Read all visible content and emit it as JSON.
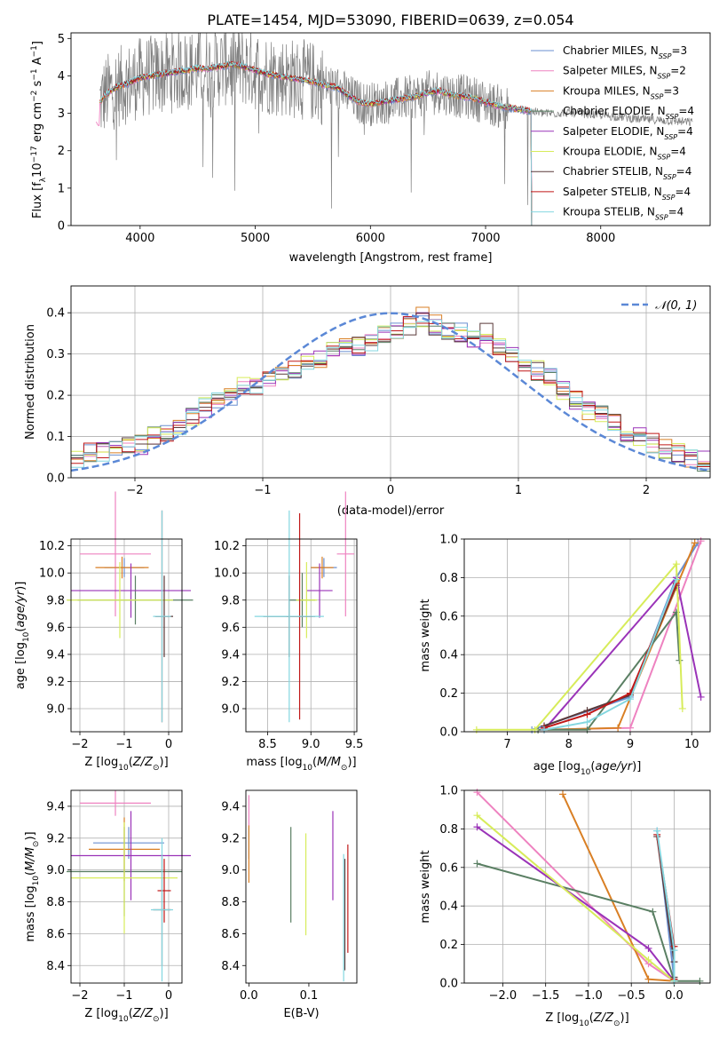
{
  "figure": {
    "title": "PLATE=1454, MJD=53090, FIBERID=0639, z=0.054"
  },
  "series_colors": [
    "#6a8fd0",
    "#ee82c0",
    "#d97f24",
    "#5a7f63",
    "#9a33b8",
    "#d7ec5a",
    "#5a3a3a",
    "#c01818",
    "#84d7e0"
  ],
  "chart_data": [
    {
      "type": "line",
      "id": "spectrum",
      "title": "PLATE=1454, MJD=53090, FIBERID=0639, z=0.054",
      "xlabel": "wavelength [Angstrom, rest frame]",
      "ylabel": "Flux [f$_\\lambda$10$^{-17}$ erg cm$^{-2}$ s$^{-1}$ A$^{-1}$]",
      "ylabel_parts": {
        "a": "Flux [f",
        "sub1": "λ",
        "b": "10",
        "sup1": "−17",
        "c": " erg cm",
        "sup2": "−2",
        "d": " s",
        "sup3": "−1",
        "e": " A",
        "sup4": "−1",
        "f": "]"
      },
      "xlim": [
        3400,
        8950
      ],
      "ylim": [
        0,
        5.15
      ],
      "xticks": [
        4000,
        5000,
        6000,
        7000,
        8000
      ],
      "yticks": [
        0,
        1,
        2,
        3,
        4,
        5
      ],
      "grid": false,
      "legend_placement": "top-right",
      "data_color": "#808080",
      "data_continuum": {
        "x": [
          3650,
          3700,
          3800,
          3900,
          4000,
          4100,
          4200,
          4300,
          4400,
          4500,
          4600,
          4700,
          4800,
          4900,
          5000,
          5100,
          5200,
          5300,
          5400,
          5500,
          5600,
          5700,
          5800,
          5900,
          6000,
          6100,
          6200,
          6300,
          6400,
          6500,
          6600,
          6700,
          6800,
          6900,
          7000,
          7100,
          7200,
          7300,
          7400,
          7500,
          7600,
          7700,
          7800,
          7900,
          8000,
          8100,
          8200,
          8300,
          8400,
          8500,
          8600,
          8700,
          8800
        ],
        "y": [
          3.3,
          3.5,
          3.7,
          3.8,
          3.95,
          4.0,
          4.05,
          4.1,
          4.15,
          4.2,
          4.2,
          4.25,
          4.3,
          4.25,
          4.15,
          4.05,
          4.0,
          3.95,
          3.9,
          3.85,
          3.75,
          3.7,
          3.5,
          3.3,
          3.25,
          3.3,
          3.35,
          3.4,
          3.45,
          3.55,
          3.6,
          3.5,
          3.45,
          3.4,
          3.3,
          3.2,
          3.15,
          3.1,
          3.05,
          3.0,
          3.0,
          3.02,
          3.0,
          2.98,
          2.95,
          2.92,
          2.9,
          2.85,
          2.83,
          2.82,
          2.8,
          2.78,
          2.76
        ]
      },
      "model_end_x": [
        7400,
        7400,
        7400,
        7400,
        7400,
        7400,
        7400,
        7400,
        7400
      ],
      "model_start_x": [
        3650,
        3620,
        3650,
        3650,
        3700,
        3650,
        3650,
        3650,
        3650
      ],
      "series": [
        {
          "name": "Chabrier MILES, N$_{SSP}$=3",
          "label_main": "Chabrier MILES, N",
          "label_sub": "SSP",
          "label_tail": "=3"
        },
        {
          "name": "Salpeter MILES, N$_{SSP}$=2",
          "label_main": "Salpeter MILES, N",
          "label_sub": "SSP",
          "label_tail": "=2"
        },
        {
          "name": "Kroupa MILES, N$_{SSP}$=3",
          "label_main": "Kroupa MILES, N",
          "label_sub": "SSP",
          "label_tail": "=3"
        },
        {
          "name": "Chabrier ELODIE, N$_{SSP}$=4",
          "label_main": "Chabrier ELODIE, N",
          "label_sub": "SSP",
          "label_tail": "=4"
        },
        {
          "name": "Salpeter ELODIE, N$_{SSP}$=4",
          "label_main": "Salpeter ELODIE, N",
          "label_sub": "SSP",
          "label_tail": "=4"
        },
        {
          "name": "Kroupa ELODIE, N$_{SSP}$=4",
          "label_main": "Kroupa ELODIE, N",
          "label_sub": "SSP",
          "label_tail": "=4"
        },
        {
          "name": "Chabrier STELIB, N$_{SSP}$=4",
          "label_main": "Chabrier STELIB, N",
          "label_sub": "SSP",
          "label_tail": "=4"
        },
        {
          "name": "Salpeter STELIB, N$_{SSP}$=4",
          "label_main": "Salpeter STELIB, N",
          "label_sub": "SSP",
          "label_tail": "=4"
        },
        {
          "name": "Kroupa STELIB, N$_{SSP}$=4",
          "label_main": "Kroupa STELIB, N",
          "label_sub": "SSP",
          "label_tail": "=4"
        }
      ]
    },
    {
      "type": "line",
      "id": "residuals",
      "xlabel": "(data-model)/error",
      "ylabel": "Normed distribution",
      "xlim": [
        -2.5,
        2.5
      ],
      "ylim": [
        0,
        0.465
      ],
      "xticks": [
        -2,
        -1,
        0,
        1,
        2
      ],
      "yticks": [
        0.0,
        0.1,
        0.2,
        0.3,
        0.4
      ],
      "grid": true,
      "legend_placement": "top-right",
      "normal_curve": {
        "name": "$\\mathcal{N}(0,1)$",
        "label": "𝒩(0, 1)",
        "mean": 0,
        "sigma": 1,
        "color": "#5b88d6"
      },
      "bin_edges": [
        -2.5,
        -2.4,
        -2.3,
        -2.2,
        -2.1,
        -2.0,
        -1.9,
        -1.8,
        -1.7,
        -1.6,
        -1.5,
        -1.4,
        -1.3,
        -1.2,
        -1.1,
        -1.0,
        -0.9,
        -0.8,
        -0.7,
        -0.6,
        -0.5,
        -0.4,
        -0.3,
        -0.2,
        -0.1,
        0.0,
        0.1,
        0.2,
        0.3,
        0.4,
        0.5,
        0.6,
        0.7,
        0.8,
        0.9,
        1.0,
        1.1,
        1.2,
        1.3,
        1.4,
        1.5,
        1.6,
        1.7,
        1.8,
        1.9,
        2.0,
        2.1,
        2.2,
        2.3,
        2.4,
        2.5
      ],
      "base_histogram": [
        0.05,
        0.06,
        0.065,
        0.07,
        0.075,
        0.08,
        0.1,
        0.11,
        0.12,
        0.15,
        0.17,
        0.19,
        0.2,
        0.22,
        0.22,
        0.24,
        0.25,
        0.26,
        0.28,
        0.29,
        0.31,
        0.33,
        0.32,
        0.33,
        0.35,
        0.36,
        0.37,
        0.39,
        0.37,
        0.36,
        0.35,
        0.34,
        0.35,
        0.32,
        0.3,
        0.28,
        0.26,
        0.24,
        0.21,
        0.19,
        0.16,
        0.15,
        0.13,
        0.11,
        0.1,
        0.085,
        0.07,
        0.06,
        0.045,
        0.04
      ],
      "histogram_deviation": 0.025
    },
    {
      "type": "scatter",
      "id": "age-vs-Z",
      "xlabel": "Z [log$_{10}$($Z/Z_\\odot$)]",
      "ylabel": "age  [log$_{10}$($age/yr$)]",
      "xlim": [
        -2.2,
        0.3
      ],
      "ylim": [
        8.83,
        10.25
      ],
      "xticks": [
        -2,
        -1,
        0
      ],
      "yticks": [
        9.0,
        9.2,
        9.4,
        9.6,
        9.8,
        10.0,
        10.2
      ],
      "grid": true,
      "errorbars": [
        {
          "x": -1.0,
          "y": 10.04,
          "xerr": 0.45,
          "yerr": 0.07,
          "series": 0
        },
        {
          "x": -1.2,
          "y": 10.14,
          "xerr": 0.8,
          "yerr": 0.46,
          "series": 1
        },
        {
          "x": -1.05,
          "y": 10.04,
          "xerr": 0.6,
          "yerr": 0.08,
          "series": 2
        },
        {
          "x": -0.75,
          "y": 9.8,
          "xerr": 1.3,
          "yerr": 0.18,
          "series": 3
        },
        {
          "x": -0.85,
          "y": 9.87,
          "xerr": 1.35,
          "yerr": 0.2,
          "series": 4
        },
        {
          "x": -1.1,
          "y": 9.8,
          "xerr": 1.2,
          "yerr": 0.28,
          "series": 5
        },
        {
          "x": -0.1,
          "y": 9.68,
          "xerr": 0.2,
          "yerr": 0.3,
          "series": 6
        },
        {
          "x": -0.15,
          "y": 9.68,
          "xerr": 0.15,
          "yerr": 0.78,
          "series": 7
        },
        {
          "x": -0.15,
          "y": 9.68,
          "xerr": 0.2,
          "yerr": 0.78,
          "series": 8
        }
      ]
    },
    {
      "type": "scatter",
      "id": "age-vs-mass",
      "xlabel": "mass [log$_{10}$($M/M_\\odot$)]",
      "ylabel": "",
      "xlim": [
        8.25,
        9.53
      ],
      "ylim": [
        8.83,
        10.25
      ],
      "xticks": [
        8.5,
        9.0,
        9.5
      ],
      "yticks": [
        9.0,
        9.2,
        9.4,
        9.6,
        9.8,
        10.0,
        10.2
      ],
      "grid": true,
      "errorbars": [
        {
          "x": 9.15,
          "y": 10.04,
          "xerr": 0.15,
          "yerr": 0.07,
          "series": 0
        },
        {
          "x": 9.4,
          "y": 10.14,
          "xerr": 0.1,
          "yerr": 0.46,
          "series": 1
        },
        {
          "x": 9.13,
          "y": 10.04,
          "xerr": 0.13,
          "yerr": 0.08,
          "series": 2
        },
        {
          "x": 8.9,
          "y": 9.8,
          "xerr": 0.15,
          "yerr": 0.2,
          "series": 3
        },
        {
          "x": 9.1,
          "y": 9.87,
          "xerr": 0.15,
          "yerr": 0.2,
          "series": 4
        },
        {
          "x": 8.95,
          "y": 9.8,
          "xerr": 0.12,
          "yerr": 0.28,
          "series": 5
        },
        {
          "x": 8.75,
          "y": 9.68,
          "xerr": 0.3,
          "yerr": 0.3,
          "series": 6
        },
        {
          "x": 8.87,
          "y": 9.68,
          "xerr": 0.15,
          "yerr": 0.76,
          "series": 7
        },
        {
          "x": 8.75,
          "y": 9.68,
          "xerr": 0.4,
          "yerr": 0.78,
          "series": 8
        }
      ]
    },
    {
      "type": "line",
      "id": "massweight-vs-age",
      "xlabel": "age  [log$_{10}$($age/yr$)]",
      "ylabel": "mass weight",
      "xlim": [
        6.3,
        10.3
      ],
      "ylim": [
        0.0,
        1.0
      ],
      "xticks": [
        7,
        8,
        9,
        10
      ],
      "yticks": [
        0.0,
        0.2,
        0.4,
        0.6,
        0.8,
        1.0
      ],
      "grid": true,
      "series": [
        {
          "x": [
            7.4,
            9.0,
            9.75,
            10.1
          ],
          "y": [
            0.01,
            0.18,
            0.8,
            0.98
          ],
          "series": 0
        },
        {
          "x": [
            7.5,
            9.0,
            10.15
          ],
          "y": [
            0.01,
            0.02,
            0.99
          ],
          "series": 1
        },
        {
          "x": [
            7.6,
            8.8,
            9.75,
            10.05
          ],
          "y": [
            0.01,
            0.02,
            0.75,
            0.98
          ],
          "series": 2
        },
        {
          "x": [
            7.5,
            8.3,
            9.75,
            9.8
          ],
          "y": [
            0.01,
            0.01,
            0.62,
            0.37
          ],
          "series": 3
        },
        {
          "x": [
            7.6,
            9.75,
            10.15
          ],
          "y": [
            0.01,
            0.8,
            0.18
          ],
          "series": 4
        },
        {
          "x": [
            6.5,
            7.45,
            9.75,
            9.85
          ],
          "y": [
            0.01,
            0.01,
            0.87,
            0.12
          ],
          "series": 5
        },
        {
          "x": [
            7.6,
            8.3,
            9.0,
            9.75
          ],
          "y": [
            0.03,
            0.11,
            0.19,
            0.76
          ],
          "series": 6
        },
        {
          "x": [
            7.6,
            8.3,
            9.0,
            9.75
          ],
          "y": [
            0.02,
            0.09,
            0.2,
            0.77
          ],
          "series": 7
        },
        {
          "x": [
            7.6,
            8.3,
            9.0,
            9.75
          ],
          "y": [
            0.01,
            0.05,
            0.17,
            0.79
          ],
          "series": 8
        }
      ]
    },
    {
      "type": "scatter",
      "id": "mass-vs-Z",
      "xlabel": "Z [log$_{10}$($Z/Z_\\odot$)]",
      "ylabel": "mass [log$_{10}$($M/M_\\odot$)]",
      "xlim": [
        -2.2,
        0.3
      ],
      "ylim": [
        8.29,
        9.5
      ],
      "xticks": [
        -2,
        -1,
        0
      ],
      "yticks": [
        8.4,
        8.6,
        8.8,
        9.0,
        9.2,
        9.4
      ],
      "grid": true,
      "errorbars": [
        {
          "x": -0.9,
          "y": 9.17,
          "xerr": 0.8,
          "yerr": 0.1,
          "series": 0
        },
        {
          "x": -1.2,
          "y": 9.42,
          "xerr": 0.8,
          "yerr": 0.08,
          "series": 1
        },
        {
          "x": -1.0,
          "y": 9.13,
          "xerr": 0.8,
          "yerr": 0.2,
          "series": 2
        },
        {
          "x": -1.0,
          "y": 8.99,
          "xerr": 1.3,
          "yerr": 0.28,
          "series": 3
        },
        {
          "x": -0.85,
          "y": 9.09,
          "xerr": 1.35,
          "yerr": 0.28,
          "series": 4
        },
        {
          "x": -1.0,
          "y": 8.95,
          "xerr": 1.2,
          "yerr": 0.35,
          "series": 5
        },
        {
          "x": -0.15,
          "y": 8.75,
          "xerr": 0.2,
          "yerr": 0.35,
          "series": 6
        },
        {
          "x": -0.1,
          "y": 8.87,
          "xerr": 0.15,
          "yerr": 0.2,
          "series": 7
        },
        {
          "x": -0.15,
          "y": 8.75,
          "xerr": 0.25,
          "yerr": 0.45,
          "series": 8
        }
      ]
    },
    {
      "type": "scatter",
      "id": "mass-vs-ebv",
      "xlabel": "E(B-V)",
      "ylabel": "",
      "xlim": [
        -0.005,
        0.18
      ],
      "ylim": [
        8.29,
        9.5
      ],
      "xticks": [
        0.0,
        0.1
      ],
      "yticks": [
        8.4,
        8.6,
        8.8,
        9.0,
        9.2,
        9.4
      ],
      "grid": false,
      "errorbars": [
        {
          "x": 0.0,
          "y": 9.17,
          "xerr": 0,
          "yerr": 0.1,
          "series": 0
        },
        {
          "x": 0.0,
          "y": 9.37,
          "xerr": 0,
          "yerr": 0.1,
          "series": 1
        },
        {
          "x": 0.0,
          "y": 9.1,
          "xerr": 0,
          "yerr": 0.18,
          "series": 2
        },
        {
          "x": 0.07,
          "y": 8.97,
          "xerr": 0,
          "yerr": 0.3,
          "series": 3
        },
        {
          "x": 0.14,
          "y": 9.09,
          "xerr": 0,
          "yerr": 0.28,
          "series": 4
        },
        {
          "x": 0.095,
          "y": 8.91,
          "xerr": 0,
          "yerr": 0.32,
          "series": 5
        },
        {
          "x": 0.16,
          "y": 8.72,
          "xerr": 0,
          "yerr": 0.35,
          "series": 6
        },
        {
          "x": 0.165,
          "y": 8.82,
          "xerr": 0,
          "yerr": 0.34,
          "series": 7
        },
        {
          "x": 0.158,
          "y": 8.7,
          "xerr": 0,
          "yerr": 0.4,
          "series": 8
        }
      ]
    },
    {
      "type": "line",
      "id": "massweight-vs-Z",
      "xlabel": "Z [log$_{10}$($Z/Z_\\odot$)]",
      "ylabel": "mass weight",
      "xlim": [
        -2.45,
        0.42
      ],
      "ylim": [
        0.0,
        1.0
      ],
      "xticks": [
        -2.0,
        -1.5,
        -1.0,
        -0.5,
        0.0
      ],
      "yticks": [
        0.0,
        0.2,
        0.4,
        0.6,
        0.8,
        1.0
      ],
      "grid": true,
      "series": [
        {
          "x": [
            -0.2,
            0.0
          ],
          "y": [
            0.79,
            0.02
          ],
          "series": 0
        },
        {
          "x": [
            -2.3,
            -0.3,
            0.0
          ],
          "y": [
            0.99,
            0.1,
            0.01
          ],
          "series": 1
        },
        {
          "x": [
            -1.3,
            -0.3,
            0.0
          ],
          "y": [
            0.98,
            0.02,
            0.01
          ],
          "series": 2
        },
        {
          "x": [
            -2.3,
            -0.25,
            0.0,
            0.3
          ],
          "y": [
            0.62,
            0.37,
            0.01,
            0.01
          ],
          "series": 3
        },
        {
          "x": [
            -2.3,
            -0.3,
            0.0
          ],
          "y": [
            0.81,
            0.18,
            0.01
          ],
          "series": 4
        },
        {
          "x": [
            -2.3,
            -0.3,
            0.0
          ],
          "y": [
            0.87,
            0.12,
            0.01
          ],
          "series": 5
        },
        {
          "x": [
            -0.2,
            0.0,
            0.0
          ],
          "y": [
            0.76,
            0.11,
            0.03
          ],
          "series": 6
        },
        {
          "x": [
            -0.2,
            0.0,
            0.0
          ],
          "y": [
            0.77,
            0.19,
            0.02
          ],
          "series": 7
        },
        {
          "x": [
            -0.2,
            0.0,
            0.0
          ],
          "y": [
            0.79,
            0.17,
            0.01
          ],
          "series": 8
        }
      ]
    }
  ]
}
